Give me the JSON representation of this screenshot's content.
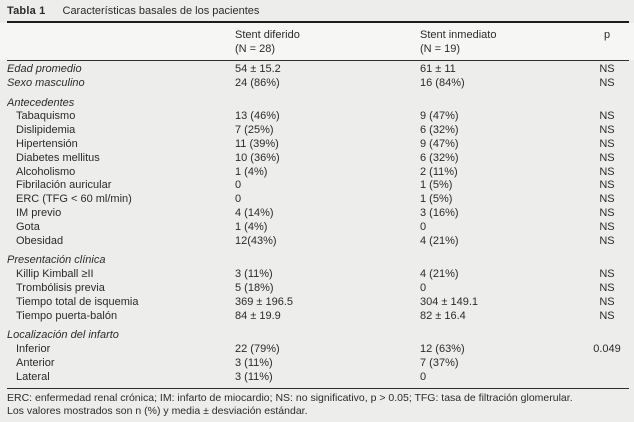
{
  "table": {
    "label": "Tabla 1",
    "title": "Características basales de los pacientes",
    "header": {
      "col1_line1": "Stent diferido",
      "col1_line2": "(N = 28)",
      "col2_line1": "Stent inmediato",
      "col2_line2": "(N = 19)",
      "p": "p"
    },
    "sections": [
      {
        "heading": "",
        "rows": [
          {
            "label": "Edad promedio",
            "italic": true,
            "indent": false,
            "v1": "54 ± 15.2",
            "v2": "61 ± 11",
            "p": "NS"
          },
          {
            "label": "Sexo masculino",
            "italic": true,
            "indent": false,
            "v1": "24 (86%)",
            "v2": "16 (84%)",
            "p": "NS"
          }
        ]
      },
      {
        "heading": "Antecedentes",
        "rows": [
          {
            "label": "Tabaquismo",
            "italic": false,
            "indent": true,
            "v1": "13 (46%)",
            "v2": "9 (47%)",
            "p": "NS"
          },
          {
            "label": "Dislipidemia",
            "italic": false,
            "indent": true,
            "v1": "7 (25%)",
            "v2": "6 (32%)",
            "p": "NS"
          },
          {
            "label": "Hipertensión",
            "italic": false,
            "indent": true,
            "v1": "11 (39%)",
            "v2": "9 (47%)",
            "p": "NS"
          },
          {
            "label": "Diabetes mellitus",
            "italic": false,
            "indent": true,
            "v1": "10 (36%)",
            "v2": "6 (32%)",
            "p": "NS"
          },
          {
            "label": "Alcoholismo",
            "italic": false,
            "indent": true,
            "v1": "1 (4%)",
            "v2": "2 (11%)",
            "p": "NS"
          },
          {
            "label": "Fibrilación auricular",
            "italic": false,
            "indent": true,
            "v1": "0",
            "v2": "1 (5%)",
            "p": "NS"
          },
          {
            "label": "ERC (TFG < 60 ml/min)",
            "italic": false,
            "indent": true,
            "v1": "0",
            "v2": "1 (5%)",
            "p": "NS"
          },
          {
            "label": "IM previo",
            "italic": false,
            "indent": true,
            "v1": "4 (14%)",
            "v2": "3 (16%)",
            "p": "NS"
          },
          {
            "label": "Gota",
            "italic": false,
            "indent": true,
            "v1": "1 (4%)",
            "v2": "0",
            "p": "NS"
          },
          {
            "label": "Obesidad",
            "italic": false,
            "indent": true,
            "v1": "12(43%)",
            "v2": "4 (21%)",
            "p": "NS"
          }
        ]
      },
      {
        "heading": "Presentación clínica",
        "rows": [
          {
            "label": "Killip Kimball ≥II",
            "italic": false,
            "indent": true,
            "v1": "3 (11%)",
            "v2": "4 (21%)",
            "p": "NS"
          },
          {
            "label": "Trombólisis previa",
            "italic": false,
            "indent": true,
            "v1": "5 (18%)",
            "v2": "0",
            "p": "NS"
          },
          {
            "label": "Tiempo total de isquemia",
            "italic": false,
            "indent": true,
            "v1": "369 ± 196.5",
            "v2": "304 ± 149.1",
            "p": "NS"
          },
          {
            "label": "Tiempo puerta-balón",
            "italic": false,
            "indent": true,
            "v1": "84 ± 19.9",
            "v2": "82 ± 16.4",
            "p": "NS"
          }
        ]
      },
      {
        "heading": "Localización del infarto",
        "rows": [
          {
            "label": "Inferior",
            "italic": false,
            "indent": true,
            "v1": "22 (79%)",
            "v2": "12 (63%)",
            "p": "0.049"
          },
          {
            "label": "Anterior",
            "italic": false,
            "indent": true,
            "v1": "3 (11%)",
            "v2": "7 (37%)",
            "p": ""
          },
          {
            "label": "Lateral",
            "italic": false,
            "indent": true,
            "v1": "3 (11%)",
            "v2": "0",
            "p": ""
          }
        ]
      }
    ],
    "footnotes": [
      "ERC: enfermedad renal crónica; IM: infarto de miocardio; NS: no significativo, p > 0.05; TFG: tasa de filtración glomerular.",
      "Los valores mostrados son n (%) y media ± desviación estándar."
    ]
  }
}
